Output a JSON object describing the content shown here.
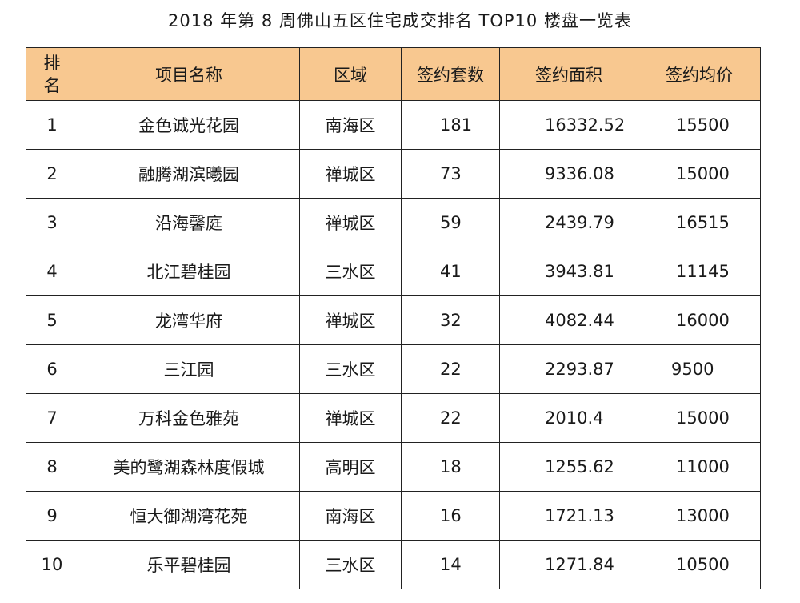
{
  "title": "2018 年第 8 周佛山五区住宅成交排名 TOP10 楼盘一览表",
  "headers": {
    "rank_line1": "排",
    "rank_line2": "名",
    "name": "项目名称",
    "district": "区域",
    "units": "签约套数",
    "area": "签约面积",
    "avg_price": "签约均价"
  },
  "rows": [
    {
      "rank": "1",
      "name": "金色诚光花园",
      "district": "南海区",
      "units": "181",
      "area": "16332.52",
      "avg_price": "15500"
    },
    {
      "rank": "2",
      "name": "融腾湖滨曦园",
      "district": "禅城区",
      "units": "73",
      "area": "9336.08",
      "avg_price": "15000"
    },
    {
      "rank": "3",
      "name": "沿海馨庭",
      "district": "禅城区",
      "units": "59",
      "area": "2439.79",
      "avg_price": "16515"
    },
    {
      "rank": "4",
      "name": "北江碧桂园",
      "district": "三水区",
      "units": "41",
      "area": "3943.81",
      "avg_price": "11145"
    },
    {
      "rank": "5",
      "name": "龙湾华府",
      "district": "禅城区",
      "units": "32",
      "area": "4082.44",
      "avg_price": "16000"
    },
    {
      "rank": "6",
      "name": "三江园",
      "district": "三水区",
      "units": "22",
      "area": "2293.87",
      "avg_price": "9500"
    },
    {
      "rank": "7",
      "name": "万科金色雅苑",
      "district": "禅城区",
      "units": "22",
      "area": "2010.4",
      "avg_price": "15000"
    },
    {
      "rank": "8",
      "name": "美的鹭湖森林度假城",
      "district": "高明区",
      "units": "18",
      "area": "1255.62",
      "avg_price": "11000"
    },
    {
      "rank": "9",
      "name": "恒大御湖湾花苑",
      "district": "南海区",
      "units": "16",
      "area": "1721.13",
      "avg_price": "13000"
    },
    {
      "rank": "10",
      "name": "乐平碧桂园",
      "district": "三水区",
      "units": "14",
      "area": "1271.84",
      "avg_price": "10500"
    }
  ]
}
